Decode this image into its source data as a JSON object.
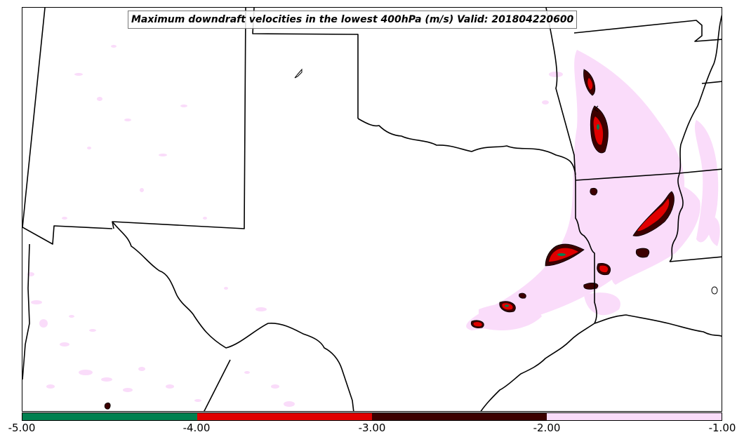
{
  "title": "Maximum downdraft velocities in the lowest 400hPa (m/s) Valid: 201804220600",
  "colorbar": {
    "colors": [
      "#008050",
      "#e00000",
      "#3c0000",
      "#fadcfa"
    ],
    "ticks": [
      "-5.00",
      "-4.00",
      "-3.00",
      "-2.00",
      "-1.00"
    ]
  },
  "colors": {
    "light": "#fadcfa",
    "dark": "#3c0000",
    "red": "#e00000",
    "green": "#008050"
  }
}
